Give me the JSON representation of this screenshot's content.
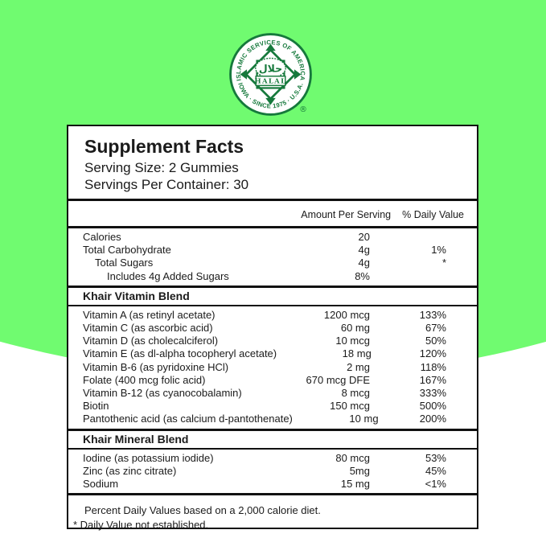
{
  "colors": {
    "background_green": "#70fb70",
    "logo_green": "#16793c",
    "panel_background": "#ffffff",
    "rule_black": "#111111"
  },
  "logo": {
    "top_arc_text": "ISLAMIC SERVICES OF AMERICA",
    "bottom_arc_text": "IOWA · SINCE 1975 · U.S.A.",
    "arabic_text": "حلال",
    "banner_text": "HALAL",
    "registered_mark": "®"
  },
  "panel": {
    "title": "Supplement Facts",
    "serving_size": "Serving Size: 2 Gummies",
    "servings_per_container": "Servings Per Container: 30",
    "column_headers": {
      "amount": "Amount Per Serving",
      "daily_value": "% Daily Value"
    },
    "top_rows": [
      {
        "name": "Calories",
        "amount": "20",
        "dv": "",
        "indent": 0
      },
      {
        "name": "Total Carbohydrate",
        "amount": "4g",
        "dv": "1%",
        "indent": 0
      },
      {
        "name": "Total Sugars",
        "amount": "4g",
        "dv": "*",
        "indent": 1
      },
      {
        "name": "Includes 4g Added Sugars",
        "amount": "8%",
        "dv": "",
        "indent": 2
      }
    ],
    "sections": [
      {
        "header": "Khair Vitamin Blend",
        "rows": [
          {
            "name": "Vitamin A (as retinyl acetate)",
            "amount": "1200 mcg",
            "dv": "133%"
          },
          {
            "name": "Vitamin C (as ascorbic acid)",
            "amount": "60 mg",
            "dv": "67%"
          },
          {
            "name": "Vitamin D (as cholecalciferol)",
            "amount": "10 mcg",
            "dv": "50%"
          },
          {
            "name": "Vitamin E (as dl-alpha tocopheryl acetate)",
            "amount": "18 mg",
            "dv": "120%"
          },
          {
            "name": "Vitamin B-6 (as pyridoxine HCl)",
            "amount": "2 mg",
            "dv": "118%"
          },
          {
            "name": "Folate (400 mcg folic acid)",
            "amount": "670 mcg DFE",
            "dv": "167%"
          },
          {
            "name": "Vitamin B-12 (as cyanocobalamin)",
            "amount": "8 mcg",
            "dv": "333%"
          },
          {
            "name": "Biotin",
            "amount": "150 mcg",
            "dv": "500%"
          },
          {
            "name": "Pantothenic acid (as calcium d-pantothenate)",
            "amount": "10 mg",
            "dv": "200%"
          }
        ]
      },
      {
        "header": "Khair Mineral Blend",
        "rows": [
          {
            "name": "Iodine (as potassium iodide)",
            "amount": "80 mcg",
            "dv": "53%"
          },
          {
            "name": "Zinc (as zinc citrate)",
            "amount": "5mg",
            "dv": "45%"
          },
          {
            "name": "Sodium",
            "amount": "15 mg",
            "dv": "<1%"
          }
        ]
      }
    ],
    "footnotes": [
      "Percent Daily Values based on a 2,000 calorie diet.",
      "* Daily Value not established."
    ]
  }
}
